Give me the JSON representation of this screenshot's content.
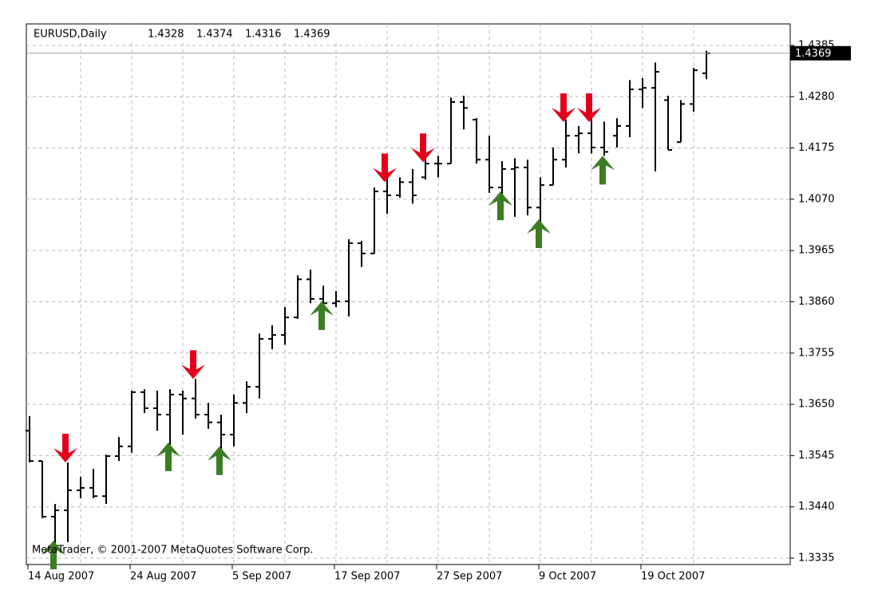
{
  "chart_data": {
    "type": "ohlc",
    "symbol": "EURUSD,Daily",
    "watermark": "MetaTrader, © 2001-2007 MetaQuotes Software Corp.",
    "categories": [
      "14 Aug 2007",
      null,
      null,
      null,
      null,
      null,
      null,
      null,
      "24 Aug 2007",
      null,
      null,
      null,
      null,
      null,
      null,
      null,
      "5 Sep 2007",
      null,
      null,
      null,
      null,
      null,
      null,
      null,
      "17 Sep 2007",
      null,
      null,
      null,
      null,
      null,
      null,
      null,
      "27 Sep 2007",
      null,
      null,
      null,
      null,
      null,
      null,
      null,
      "9 Oct 2007",
      null,
      null,
      null,
      null,
      null,
      null,
      null,
      "19 Oct 2007",
      null,
      null,
      null,
      null,
      null
    ],
    "open": [
      1.3596,
      1.3534,
      1.342,
      1.3433,
      1.3474,
      1.3479,
      1.3462,
      1.3544,
      1.3564,
      1.3675,
      1.3642,
      1.3629,
      1.367,
      1.3662,
      1.3629,
      1.3613,
      1.3588,
      1.3653,
      1.3686,
      1.3784,
      1.3792,
      1.3828,
      1.3906,
      1.3866,
      1.3857,
      1.3861,
      1.398,
      1.3959,
      1.4086,
      1.4078,
      1.4105,
      1.4115,
      1.4143,
      1.4143,
      1.4269,
      1.4233,
      1.4151,
      1.4094,
      1.4132,
      1.4135,
      1.4053,
      1.4099,
      1.4151,
      1.42,
      1.4205,
      1.4176,
      1.42,
      1.422,
      1.4295,
      1.4298,
      1.4273,
      1.4187,
      1.4265,
      1.4328
    ],
    "high": [
      1.3626,
      1.3534,
      1.3446,
      1.3531,
      1.3502,
      1.3518,
      1.3547,
      1.3583,
      1.3678,
      1.3681,
      1.3678,
      1.3681,
      1.3678,
      1.3702,
      1.3653,
      1.3629,
      1.367,
      1.3697,
      1.3795,
      1.3812,
      1.3849,
      1.3914,
      1.3926,
      1.3893,
      1.3882,
      1.3988,
      1.3985,
      1.4094,
      1.4127,
      1.4115,
      1.4132,
      1.4159,
      1.4159,
      1.4278,
      1.4282,
      1.4236,
      1.42,
      1.4148,
      1.4154,
      1.4151,
      1.4115,
      1.4176,
      1.4233,
      1.422,
      1.4241,
      1.4229,
      1.4236,
      1.4314,
      1.4318,
      1.435,
      1.4282,
      1.4273,
      1.4339,
      1.4374
    ],
    "low": [
      1.3531,
      1.3417,
      1.3351,
      1.3368,
      1.3458,
      1.3458,
      1.3446,
      1.3534,
      1.3551,
      1.3632,
      1.3596,
      1.3564,
      1.3588,
      1.3621,
      1.36,
      1.3555,
      1.3564,
      1.3632,
      1.3662,
      1.3763,
      1.3772,
      1.3825,
      1.3857,
      1.3844,
      1.3849,
      1.383,
      1.3931,
      1.3959,
      1.404,
      1.4073,
      1.4061,
      1.411,
      1.4115,
      1.4143,
      1.4213,
      1.4143,
      1.4083,
      1.4078,
      1.4034,
      1.4037,
      1.4012,
      1.4099,
      1.4135,
      1.4164,
      1.4164,
      1.4159,
      1.4176,
      1.4197,
      1.4257,
      1.4127,
      1.4171,
      1.4187,
      1.4249,
      1.4316
    ],
    "close": [
      1.3534,
      1.342,
      1.3433,
      1.3474,
      1.3479,
      1.3462,
      1.3544,
      1.3564,
      1.3675,
      1.3642,
      1.3629,
      1.367,
      1.3662,
      1.3629,
      1.3613,
      1.3588,
      1.3653,
      1.3686,
      1.3784,
      1.3792,
      1.3828,
      1.3906,
      1.3866,
      1.3857,
      1.3861,
      1.398,
      1.3959,
      1.4086,
      1.4078,
      1.4105,
      1.4078,
      1.4143,
      1.4143,
      1.4269,
      1.4257,
      1.4151,
      1.4094,
      1.4132,
      1.4135,
      1.4053,
      1.4099,
      1.4151,
      1.42,
      1.4205,
      1.4176,
      1.4167,
      1.422,
      1.4295,
      1.4298,
      1.4331,
      1.4171,
      1.4265,
      1.4334,
      1.4369
    ],
    "sell_signals": [
      null,
      null,
      null,
      1.3531,
      null,
      null,
      null,
      null,
      null,
      null,
      null,
      null,
      null,
      1.3702,
      null,
      null,
      null,
      null,
      null,
      null,
      null,
      null,
      null,
      null,
      null,
      null,
      null,
      null,
      1.4105,
      null,
      null,
      1.4146,
      null,
      null,
      null,
      null,
      null,
      null,
      null,
      null,
      null,
      null,
      1.4228,
      null,
      1.4228,
      null,
      null,
      null,
      null,
      null,
      null,
      null,
      null,
      null
    ],
    "buy_signals": [
      null,
      null,
      1.3371,
      null,
      null,
      null,
      null,
      null,
      null,
      null,
      null,
      1.3572,
      null,
      null,
      null,
      1.3564,
      null,
      null,
      null,
      null,
      null,
      null,
      null,
      1.3861,
      null,
      null,
      null,
      null,
      null,
      null,
      null,
      null,
      null,
      null,
      null,
      null,
      null,
      1.4086,
      null,
      null,
      1.4029,
      null,
      null,
      null,
      null,
      1.4159,
      null,
      null,
      null,
      null,
      null,
      null,
      null,
      null
    ],
    "bar_color": "#000000",
    "sell_color": "#e3001b",
    "buy_color": "#3b7d23",
    "ylim": [
      1.3322,
      1.4429
    ],
    "yticks": [
      1.4385,
      {
        "value": 1.428,
        "label": "1.4280"
      },
      1.4175,
      {
        "value": 1.407,
        "label": "1.4070"
      },
      1.3965,
      {
        "value": 1.386,
        "label": "1.3860"
      },
      1.3755,
      {
        "value": 1.365,
        "label": "1.3650"
      },
      1.3545,
      {
        "value": 1.344,
        "label": "1.3440"
      },
      1.3335
    ],
    "grid": true
  }
}
